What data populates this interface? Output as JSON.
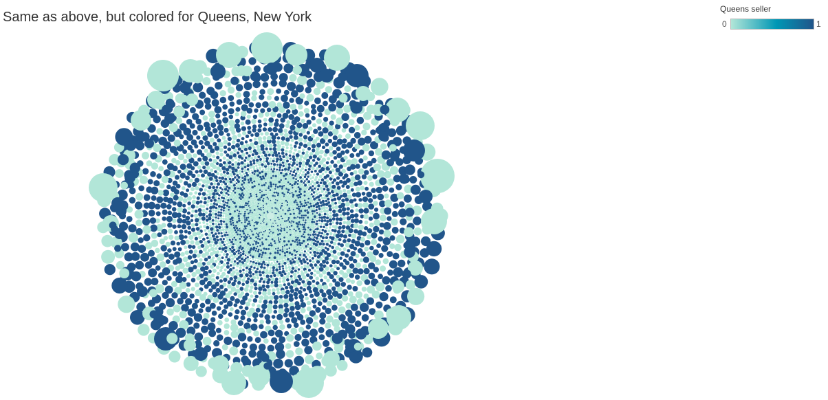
{
  "title": "Same as above, but colored for Queens, New York",
  "legend": {
    "title": "Queens seller",
    "min_label": "0",
    "max_label": "1",
    "color_low": "#b2e6d8",
    "color_mid": "#0097b5",
    "color_high": "#21558a"
  },
  "chart_data": {
    "type": "packed-bubble",
    "color_field": "Queens seller",
    "color_range": [
      0,
      1
    ],
    "color_ramp": [
      "#b2e6d8",
      "#0097b5",
      "#21558a"
    ],
    "description_of_marks": "thousands of circles packed into a rough disc; large circles on the outer rim, smallest circles at the center; color encodes Queens seller (0 = light teal, 1 = dark blue)",
    "values": []
  }
}
